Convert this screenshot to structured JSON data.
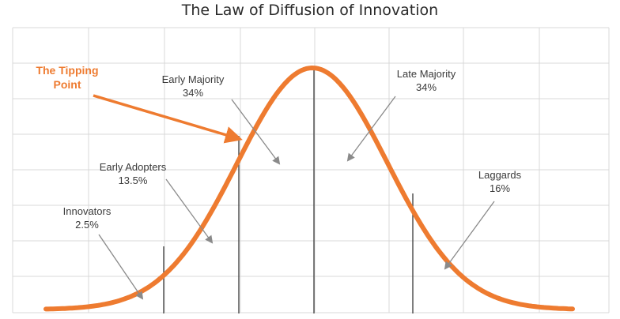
{
  "title": "The Law of Diffusion of Innovation",
  "colors": {
    "curve": "#ee7b30",
    "grid": "#d9d9d9",
    "divider": "#3a3a3a",
    "arrow": "#8a8a8a",
    "text": "#3a3a3a"
  },
  "segments": [
    {
      "name": "Innovators",
      "percent": "2.5%"
    },
    {
      "name": "Early Adopters",
      "percent": "13.5%"
    },
    {
      "name": "Early Majority",
      "percent": "34%"
    },
    {
      "name": "Late Majority",
      "percent": "34%"
    },
    {
      "name": "Laggards",
      "percent": "16%"
    }
  ],
  "tipping_point": {
    "line1": "The Tipping",
    "line2": "Point"
  }
}
